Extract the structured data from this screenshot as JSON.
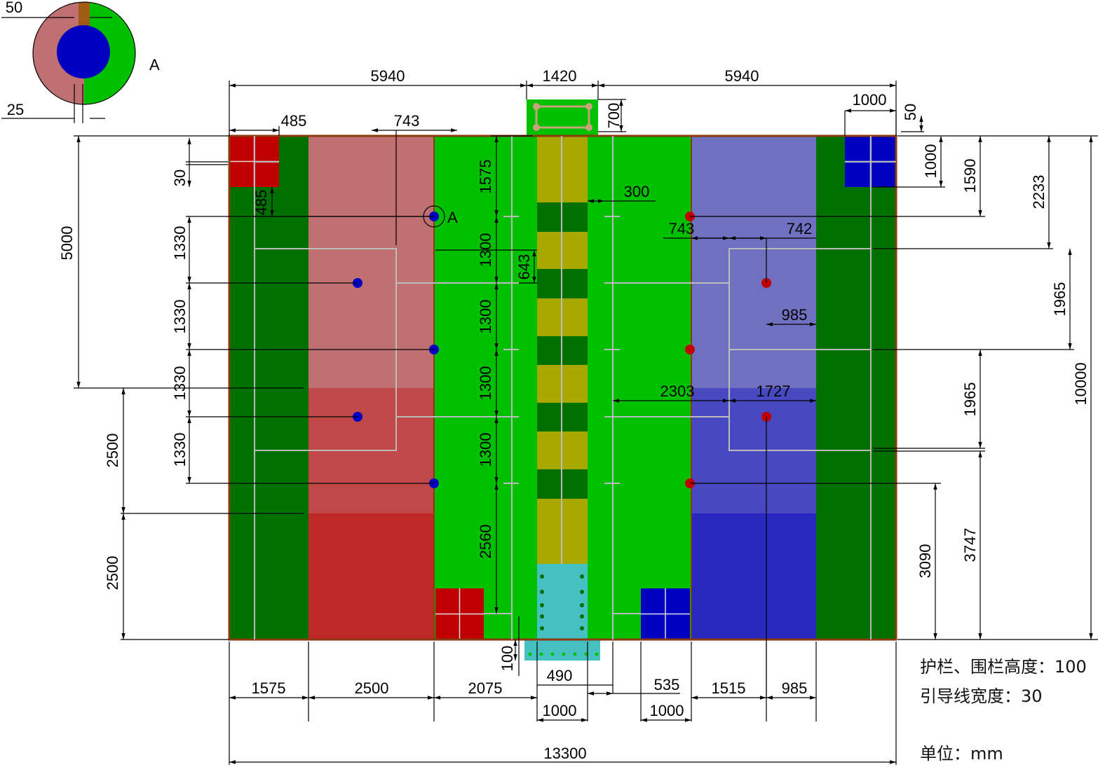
{
  "colors": {
    "border": "#8b3a0e",
    "green_light": "#00c000",
    "green_dark": "#007000",
    "olive": "#a8a800",
    "cyan": "#46c0c0",
    "red_zone_top": "#c07070",
    "red_zone_mid": "#c04848",
    "red_zone_bottom": "#c02828",
    "red_box": "#c00000",
    "blue_zone_top": "#7070c0",
    "blue_zone_mid": "#4848c0",
    "blue_zone_bottom": "#2828c0",
    "blue_box": "#0000c0",
    "dot_blue": "#0000c0",
    "dot_red": "#c00000",
    "guide_line": "#bbbbbb",
    "dim_line": "#000000"
  },
  "detail": {
    "label": "A",
    "dim_top": "50",
    "dim_bottom": "25"
  },
  "marker_label": "A",
  "dimensions": {
    "top_left_width": "5940",
    "top_center_width": "1420",
    "top_right_width": "5940",
    "left_corner_box": "485",
    "left_post_offset": "743",
    "right_corner_box": "1000",
    "entrance_depth": "700",
    "top_edge_50": "50",
    "corner_box_height_30": "30",
    "corner_box_height_485": "485",
    "left_upper_5000": "5000",
    "left_lower_2500a": "2500",
    "left_lower_2500b": "2500",
    "spacing_1330": [
      "1330",
      "1330",
      "1330",
      "1330"
    ],
    "center_1575": "1575",
    "center_1300": [
      "1300",
      "1300",
      "1300",
      "1300"
    ],
    "center_643": "643",
    "center_2560": "2560",
    "center_300": "300",
    "right_743": "743",
    "right_742": "742",
    "right_985": "985",
    "right_2303": "2303",
    "right_1727": "1727",
    "right_1000": "1000",
    "right_1590": "1590",
    "right_2233": "2233",
    "right_1965a": "1965",
    "right_1965b": "1965",
    "right_10000": "10000",
    "right_3090": "3090",
    "right_3747": "3747",
    "bottom_100": "100",
    "bottom_1575": "1575",
    "bottom_2500": "2500",
    "bottom_2075": "2075",
    "bottom_490": "490",
    "bottom_535": "535",
    "bottom_1515": "1515",
    "bottom_985": "985",
    "bottom_1000a": "1000",
    "bottom_1000b": "1000",
    "total_width": "13300"
  },
  "notes": {
    "rail_height": "护栏、围栏高度：100",
    "guide_width": "引导线宽度：30",
    "unit": "单位：mm"
  }
}
